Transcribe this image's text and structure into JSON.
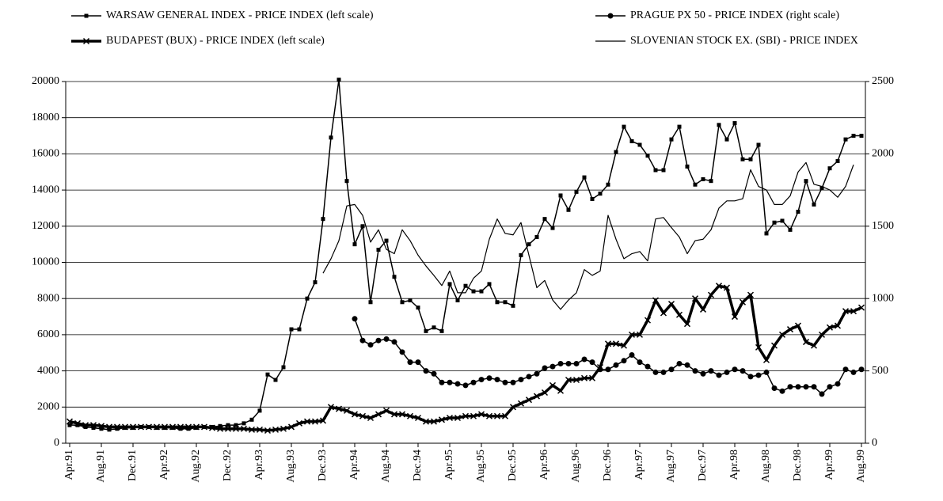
{
  "chart_data": {
    "type": "line",
    "categories": [
      "Apr.91",
      null,
      null,
      null,
      "Aug.91",
      null,
      null,
      null,
      "Dec.91",
      null,
      null,
      null,
      "Apr.92",
      null,
      null,
      null,
      "Aug.92",
      null,
      null,
      null,
      "Dec.92",
      null,
      null,
      null,
      "Apr.93",
      null,
      null,
      null,
      "Aug.93",
      null,
      null,
      null,
      "Dec.93",
      null,
      null,
      null,
      "Apr.94",
      null,
      null,
      null,
      "Aug.94",
      null,
      null,
      null,
      "Dec.94",
      null,
      null,
      null,
      "Apr.95",
      null,
      null,
      null,
      "Aug.95",
      null,
      null,
      null,
      "Dec.95",
      null,
      null,
      null,
      "Apr.96",
      null,
      null,
      null,
      "Aug.96",
      null,
      null,
      null,
      "Dec.96",
      null,
      null,
      null,
      "Apr.97",
      null,
      null,
      null,
      "Aug.97",
      null,
      null,
      null,
      "Dec.97",
      null,
      null,
      null,
      "Apr.98",
      null,
      null,
      null,
      "Aug.98",
      null,
      null,
      null,
      "Dec.98",
      null,
      null,
      null,
      "Apr.99",
      null,
      null,
      null,
      "Aug.99"
    ],
    "series": [
      {
        "name": "WARSAW GENERAL INDEX - PRICE INDEX (left scale)",
        "color": "#000000",
        "marker": "square",
        "line_width": 1.5,
        "axis": "y",
        "values": [
          1000,
          1000,
          900,
          850,
          800,
          750,
          800,
          850,
          850,
          900,
          900,
          850,
          850,
          850,
          800,
          800,
          850,
          900,
          900,
          950,
          1000,
          1000,
          1100,
          1300,
          1800,
          3800,
          3500,
          4200,
          6300,
          6300,
          8000,
          8900,
          12400,
          16900,
          20100,
          14500,
          11000,
          12000,
          7800,
          10700,
          11200,
          9200,
          7800,
          7900,
          7500,
          6200,
          6400,
          6200,
          8800,
          7900,
          8700,
          8400,
          8400,
          8800,
          7800,
          7800,
          7600,
          10400,
          11000,
          11400,
          12400,
          11900,
          13700,
          12900,
          13900,
          14700,
          13500,
          13800,
          14300,
          16100,
          17500,
          16700,
          16500,
          15900,
          15100,
          15100,
          16800,
          17500,
          15300,
          14300,
          14600,
          14500,
          17600,
          16800,
          17700,
          15700,
          15700,
          16500,
          11600,
          12200,
          12300,
          11800,
          12800,
          14500,
          13200,
          14100,
          15200,
          15600,
          16800,
          17000,
          17000
        ]
      },
      {
        "name": "BUDAPEST (BUX) - PRICE INDEX (left scale)",
        "color": "#000000",
        "marker": "x",
        "line_width": 3.5,
        "axis": "y",
        "values": [
          1200,
          1100,
          1000,
          1000,
          950,
          900,
          900,
          900,
          900,
          900,
          900,
          900,
          900,
          900,
          900,
          900,
          900,
          900,
          850,
          800,
          800,
          800,
          800,
          750,
          750,
          700,
          750,
          800,
          900,
          1100,
          1200,
          1200,
          1250,
          2000,
          1900,
          1800,
          1600,
          1500,
          1400,
          1600,
          1800,
          1600,
          1600,
          1500,
          1400,
          1200,
          1200,
          1300,
          1400,
          1400,
          1500,
          1500,
          1600,
          1500,
          1500,
          1500,
          2000,
          2200,
          2400,
          2600,
          2800,
          3200,
          2900,
          3500,
          3500,
          3600,
          3600,
          4200,
          5500,
          5500,
          5400,
          6000,
          6000,
          6800,
          7900,
          7200,
          7700,
          7100,
          6600,
          8000,
          7400,
          8200,
          8700,
          8600,
          7000,
          7800,
          8200,
          5300,
          4600,
          5400,
          6000,
          6300,
          6500,
          5600,
          5400,
          6000,
          6400,
          6500,
          7300,
          7300,
          7500
        ]
      },
      {
        "name": "PRAGUE PX 50 - PRICE INDEX (right scale)",
        "color": "#000000",
        "marker": "circle",
        "line_width": 1.5,
        "axis": "y2",
        "values": [
          null,
          null,
          null,
          null,
          null,
          null,
          null,
          null,
          null,
          null,
          null,
          null,
          null,
          null,
          null,
          null,
          null,
          null,
          null,
          null,
          null,
          null,
          null,
          null,
          null,
          null,
          null,
          null,
          null,
          null,
          null,
          null,
          null,
          null,
          null,
          null,
          860,
          710,
          680,
          710,
          720,
          700,
          630,
          560,
          560,
          500,
          480,
          420,
          420,
          410,
          400,
          420,
          440,
          450,
          440,
          420,
          420,
          440,
          460,
          480,
          520,
          530,
          550,
          550,
          550,
          580,
          560,
          510,
          510,
          540,
          570,
          610,
          560,
          530,
          490,
          490,
          510,
          550,
          540,
          500,
          480,
          500,
          470,
          490,
          510,
          500,
          460,
          470,
          490,
          380,
          360,
          390,
          390,
          390,
          390,
          340,
          390,
          410,
          510,
          490,
          510
        ]
      },
      {
        "name": "SLOVENIAN STOCK EX. (SBI) - PRICE INDEX",
        "color": "#000000",
        "marker": "none",
        "line_width": 1.2,
        "axis": "y2",
        "values": [
          null,
          null,
          null,
          null,
          null,
          null,
          null,
          null,
          null,
          null,
          null,
          null,
          null,
          null,
          null,
          null,
          null,
          null,
          null,
          null,
          null,
          null,
          null,
          null,
          null,
          null,
          null,
          null,
          null,
          null,
          null,
          null,
          1175,
          1275,
          1400,
          1640,
          1650,
          1575,
          1390,
          1475,
          1340,
          1310,
          1475,
          1400,
          1300,
          1225,
          1160,
          1090,
          1190,
          1040,
          1040,
          1140,
          1190,
          1410,
          1550,
          1450,
          1440,
          1525,
          1300,
          1075,
          1125,
          990,
          925,
          990,
          1040,
          1200,
          1160,
          1190,
          1575,
          1410,
          1275,
          1310,
          1325,
          1260,
          1550,
          1560,
          1490,
          1425,
          1310,
          1400,
          1410,
          1475,
          1625,
          1675,
          1675,
          1690,
          1890,
          1775,
          1750,
          1650,
          1650,
          1710,
          1875,
          1940,
          1790,
          1775,
          1750,
          1700,
          1775,
          1925,
          null
        ]
      }
    ],
    "ylim": [
      0,
      20000
    ],
    "yticks": [
      0,
      2000,
      4000,
      6000,
      8000,
      10000,
      12000,
      14000,
      16000,
      18000,
      20000
    ],
    "y2lim": [
      0,
      2500
    ],
    "y2ticks": [
      0,
      500,
      1000,
      1500,
      2000,
      2500
    ],
    "grid": true
  }
}
